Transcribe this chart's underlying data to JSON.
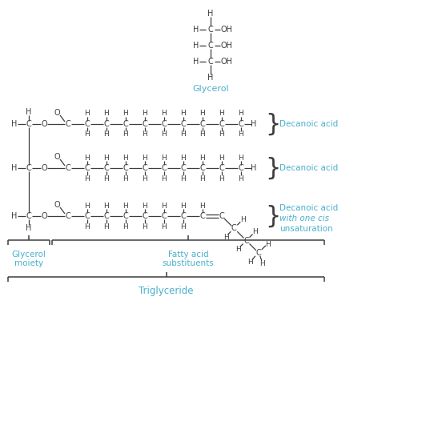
{
  "background_color": "#ffffff",
  "text_color": "#3d3d3d",
  "cyan_color": "#4ab0cc",
  "bond_color": "#3d3d3d",
  "figsize": [
    5.42,
    5.26
  ],
  "dpi": 100,
  "glycerol_label": "Glycerol",
  "decanoic1_label": "Decanoic acid",
  "decanoic2_label": "Decanoic acid",
  "decanoic3_label1": "Decanoic acid",
  "decanoic3_label2": "with one cis",
  "decanoic3_label3": "unsaturation",
  "glycerol_moiety_label1": "Glycerol",
  "glycerol_moiety_label2": "moiety",
  "fatty_acid_label1": "Fatty acid",
  "fatty_acid_label2": "substituents",
  "triglyceride_label": "Triglyceride"
}
